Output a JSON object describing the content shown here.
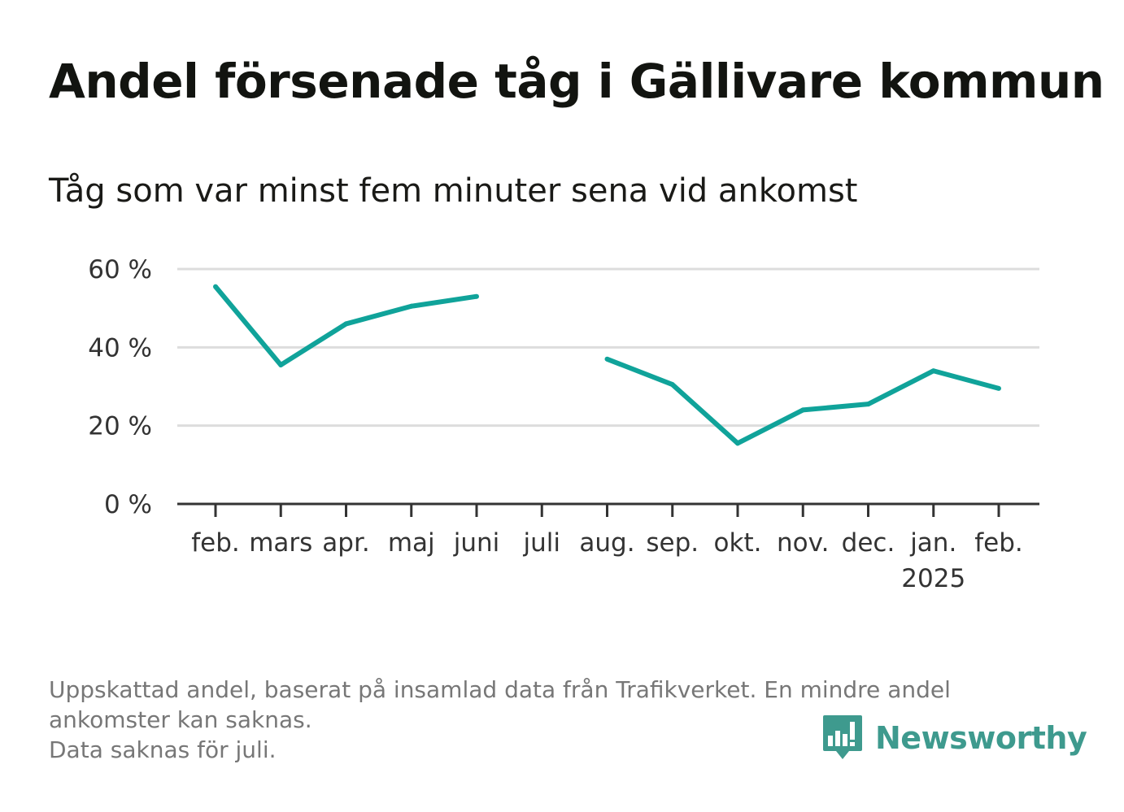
{
  "title": "Andel försenade tåg i Gällivare kommun",
  "subtitle": "Tåg som var minst fem minuter sena vid ankomst",
  "footnote": {
    "line1": "Uppskattad andel, baserat på insamlad data från Trafikverket. En mindre andel",
    "line2": "ankomster kan saknas.",
    "line3": "Data saknas för juli."
  },
  "brand": {
    "name": "Newsworthy",
    "icon": "newsworthy-chart-bubble-icon",
    "color": "#3e9a8e"
  },
  "colors": {
    "line": "#10a39a",
    "grid": "#dddddd",
    "axis": "#333333"
  },
  "chart_data": {
    "type": "line",
    "categories": [
      "feb.",
      "mars",
      "apr.",
      "maj",
      "juni",
      "juli",
      "aug.",
      "sep.",
      "okt.",
      "nov.",
      "dec.",
      "jan.",
      "feb."
    ],
    "year_labels": [
      "",
      "",
      "",
      "",
      "",
      "",
      "",
      "",
      "",
      "",
      "",
      "2025",
      ""
    ],
    "series": [
      {
        "values": [
          55.5,
          35.5,
          46,
          50.5,
          53,
          null,
          37,
          30.5,
          15.5,
          24,
          25.5,
          34,
          29.5
        ]
      }
    ],
    "ylim": [
      0,
      60
    ],
    "yticks": [
      0,
      20,
      40,
      60
    ],
    "ytick_labels": [
      "0 %",
      "20 %",
      "40 %",
      "60 %"
    ],
    "grid": true,
    "xlabel": "",
    "ylabel": ""
  }
}
